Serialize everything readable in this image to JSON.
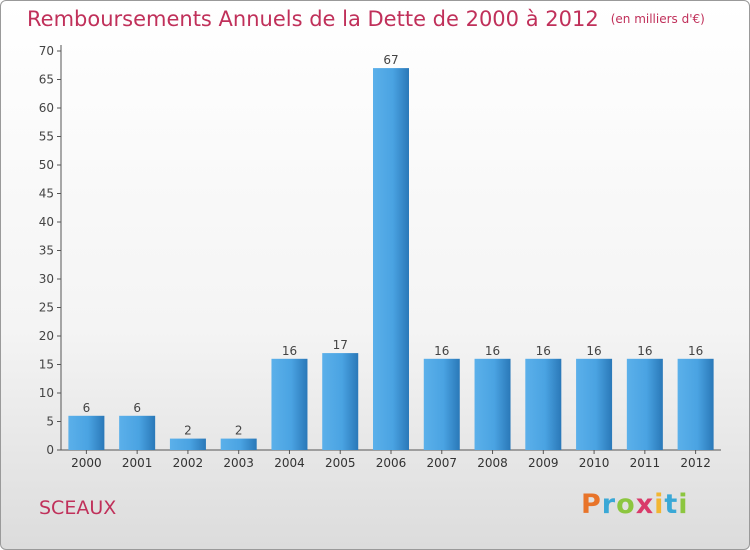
{
  "title": "Remboursements Annuels de la Dette de 2000 à 2012",
  "unit": "(en milliers d'€)",
  "commune": "SCEAUX",
  "logo": {
    "letters": [
      "P",
      "r",
      "o",
      "x",
      "i",
      "t",
      "i"
    ],
    "colors": [
      "#e8742a",
      "#3aa8d6",
      "#8cc63f",
      "#d93b6a",
      "#f2b632",
      "#3aa8d6",
      "#8cc63f"
    ]
  },
  "colors": {
    "bar": "#3f97d8",
    "bar_light": "#5bb0ea",
    "bar_dark": "#2a78b8",
    "title": "#c0305a"
  },
  "chart_data": {
    "type": "bar",
    "categories": [
      "2000",
      "2001",
      "2002",
      "2003",
      "2004",
      "2005",
      "2006",
      "2007",
      "2008",
      "2009",
      "2010",
      "2011",
      "2012"
    ],
    "values": [
      6,
      6,
      2,
      2,
      16,
      17,
      67,
      16,
      16,
      16,
      16,
      16,
      16
    ],
    "title": "Remboursements Annuels de la Dette de 2000 à 2012",
    "xlabel": "",
    "ylabel": "",
    "ylim": [
      0,
      70
    ],
    "yticks": [
      0,
      5,
      10,
      15,
      20,
      25,
      30,
      35,
      40,
      45,
      50,
      55,
      60,
      65,
      70
    ],
    "grid": false,
    "legend": "none"
  }
}
